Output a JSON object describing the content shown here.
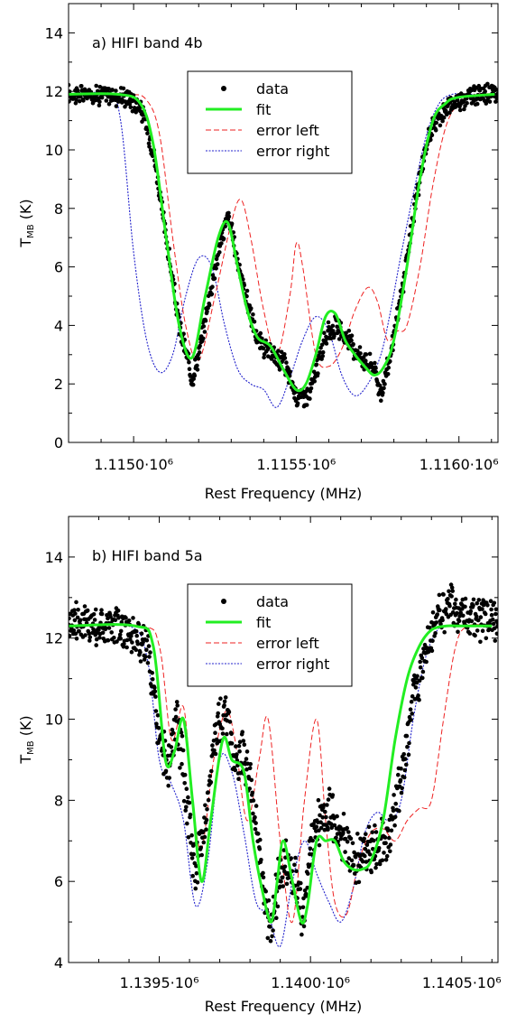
{
  "chart_data": [
    {
      "type": "line",
      "panel_label": "a) HIFI band 4b",
      "xlabel": "Rest Frequency (MHz)",
      "ylabel": "T_MB (K)",
      "ylabel_main": "T",
      "ylabel_sub": "MB",
      "ylabel_unit": " (K)",
      "xlim": [
        1114800,
        1116120
      ],
      "ylim": [
        0,
        15
      ],
      "x_ticks": [
        1115000,
        1115500,
        1116000
      ],
      "x_tick_labels": [
        "1.1150·10⁶",
        "1.1155·10⁶",
        "1.1160·10⁶"
      ],
      "y_ticks": [
        0,
        2,
        4,
        6,
        8,
        10,
        12,
        14
      ],
      "y_tick_labels": [
        "0",
        "2",
        "4",
        "6",
        "8",
        "10",
        "12",
        "14"
      ],
      "legend_placement": "top-center",
      "legend": [
        "data",
        "fit",
        "error left",
        "error right"
      ],
      "series": [
        {
          "name": "data",
          "style": "points",
          "color": "#000000",
          "x": [
            1114800,
            1114900,
            1114980,
            1115020,
            1115060,
            1115100,
            1115140,
            1115180,
            1115200,
            1115230,
            1115260,
            1115290,
            1115320,
            1115350,
            1115380,
            1115420,
            1115460,
            1115500,
            1115540,
            1115560,
            1115590,
            1115620,
            1115650,
            1115680,
            1115710,
            1115740,
            1115760,
            1115790,
            1115830,
            1115870,
            1115910,
            1115950,
            1116000,
            1116050,
            1116110
          ],
          "y": [
            11.9,
            11.9,
            11.8,
            11.5,
            10.0,
            7.0,
            4.0,
            2.2,
            3.0,
            4.8,
            6.5,
            7.8,
            6.2,
            4.8,
            3.5,
            3.0,
            2.8,
            1.6,
            1.6,
            2.4,
            3.6,
            4.0,
            3.6,
            3.2,
            2.8,
            2.6,
            1.6,
            3.0,
            5.5,
            8.5,
            10.6,
            11.3,
            11.7,
            11.9,
            11.9
          ]
        },
        {
          "name": "fit",
          "style": "solid",
          "color": "#22ee22",
          "x": [
            1114800,
            1114950,
            1115020,
            1115060,
            1115100,
            1115140,
            1115180,
            1115220,
            1115260,
            1115290,
            1115320,
            1115350,
            1115380,
            1115420,
            1115460,
            1115500,
            1115530,
            1115560,
            1115590,
            1115620,
            1115650,
            1115680,
            1115710,
            1115740,
            1115770,
            1115800,
            1115840,
            1115880,
            1115920,
            1115960,
            1116000,
            1116110
          ],
          "y": [
            11.9,
            11.9,
            11.6,
            10.2,
            7.0,
            4.0,
            2.9,
            5.0,
            7.0,
            7.5,
            6.0,
            4.5,
            3.6,
            3.3,
            2.5,
            1.8,
            2.0,
            3.0,
            4.3,
            4.4,
            3.5,
            3.0,
            2.6,
            2.3,
            2.6,
            3.5,
            6.0,
            9.0,
            11.0,
            11.6,
            11.8,
            11.9
          ]
        },
        {
          "name": "error left",
          "style": "dashed",
          "color": "#ee2222",
          "x": [
            1114800,
            1114980,
            1115040,
            1115080,
            1115120,
            1115160,
            1115200,
            1115250,
            1115300,
            1115330,
            1115360,
            1115400,
            1115440,
            1115480,
            1115500,
            1115520,
            1115560,
            1115600,
            1115640,
            1115680,
            1115720,
            1115750,
            1115780,
            1115810,
            1115840,
            1115880,
            1115920,
            1115960,
            1116000,
            1116050,
            1116110
          ],
          "y": [
            11.9,
            11.9,
            11.7,
            10.5,
            7.0,
            4.0,
            2.8,
            5.0,
            7.5,
            8.3,
            7.0,
            4.5,
            3.0,
            5.0,
            6.8,
            6.0,
            3.0,
            2.6,
            3.2,
            4.5,
            5.3,
            4.8,
            3.5,
            3.8,
            4.0,
            6.0,
            8.8,
            10.8,
            11.6,
            11.9,
            11.9
          ]
        },
        {
          "name": "error right",
          "style": "dotted",
          "color": "#2222cc",
          "x": [
            1114800,
            1114920,
            1114960,
            1115000,
            1115040,
            1115080,
            1115120,
            1115160,
            1115200,
            1115240,
            1115280,
            1115320,
            1115360,
            1115400,
            1115440,
            1115480,
            1115520,
            1115560,
            1115600,
            1115640,
            1115680,
            1115720,
            1115760,
            1115790,
            1115820,
            1115860,
            1115900,
            1115940,
            1115980,
            1116020,
            1116110
          ],
          "y": [
            11.9,
            11.9,
            11.0,
            6.5,
            3.5,
            2.4,
            3.0,
            5.0,
            6.3,
            6.0,
            4.0,
            2.5,
            2.0,
            1.8,
            1.2,
            2.2,
            3.5,
            4.3,
            3.8,
            2.3,
            1.6,
            2.0,
            3.0,
            4.5,
            6.3,
            8.5,
            10.5,
            11.6,
            11.9,
            11.9,
            11.9
          ]
        }
      ]
    },
    {
      "type": "line",
      "panel_label": "b) HIFI band 5a",
      "xlabel": "Rest Frequency (MHz)",
      "ylabel": "T_MB (K)",
      "ylabel_main": "T",
      "ylabel_sub": "MB",
      "ylabel_unit": " (K)",
      "xlim": [
        1139200,
        1140620
      ],
      "ylim": [
        4,
        15
      ],
      "x_ticks": [
        1139500,
        1140000,
        1140500
      ],
      "x_tick_labels": [
        "1.1395·10⁶",
        "1.1400·10⁶",
        "1.1405·10⁶"
      ],
      "y_ticks": [
        4,
        6,
        8,
        10,
        12,
        14
      ],
      "y_tick_labels": [
        "4",
        "6",
        "8",
        "10",
        "12",
        "14"
      ],
      "legend_placement": "top-center",
      "legend": [
        "data",
        "fit",
        "error left",
        "error right"
      ],
      "series": [
        {
          "name": "data",
          "style": "points",
          "color": "#000000",
          "x": [
            1139200,
            1139300,
            1139400,
            1139460,
            1139500,
            1139530,
            1139560,
            1139590,
            1139620,
            1139650,
            1139690,
            1139720,
            1139750,
            1139780,
            1139810,
            1139840,
            1139870,
            1139890,
            1139920,
            1139950,
            1139980,
            1140000,
            1140030,
            1140060,
            1140090,
            1140120,
            1140150,
            1140180,
            1140220,
            1140260,
            1140300,
            1140340,
            1140380,
            1140420,
            1140470,
            1140520,
            1140600
          ],
          "y": [
            12.5,
            12.3,
            12.2,
            11.8,
            9.5,
            8.8,
            10.0,
            8.0,
            6.2,
            7.5,
            9.8,
            10.2,
            9.0,
            9.2,
            8.0,
            6.0,
            4.8,
            5.8,
            6.5,
            6.0,
            5.0,
            6.8,
            7.5,
            7.8,
            7.2,
            7.0,
            6.5,
            6.8,
            6.8,
            7.2,
            8.5,
            10.5,
            11.8,
            12.5,
            12.8,
            12.5,
            12.5
          ]
        },
        {
          "name": "fit",
          "style": "solid",
          "color": "#22ee22",
          "x": [
            1139200,
            1139420,
            1139480,
            1139520,
            1139550,
            1139580,
            1139610,
            1139640,
            1139670,
            1139710,
            1139740,
            1139780,
            1139810,
            1139840,
            1139870,
            1139890,
            1139910,
            1139940,
            1139970,
            1139990,
            1140020,
            1140050,
            1140080,
            1140110,
            1140140,
            1140170,
            1140200,
            1140240,
            1140280,
            1140320,
            1140360,
            1140400,
            1140450,
            1140500,
            1140600
          ],
          "y": [
            12.3,
            12.3,
            11.8,
            9.0,
            9.2,
            10.0,
            8.0,
            6.0,
            7.5,
            9.5,
            9.0,
            8.7,
            7.0,
            5.8,
            5.0,
            6.0,
            7.0,
            6.0,
            5.0,
            5.4,
            7.0,
            7.0,
            7.0,
            6.5,
            6.3,
            6.3,
            6.5,
            7.5,
            9.5,
            11.0,
            11.8,
            12.2,
            12.3,
            12.3,
            12.3
          ]
        },
        {
          "name": "error left",
          "style": "dashed",
          "color": "#ee2222",
          "x": [
            1139200,
            1139440,
            1139500,
            1139540,
            1139580,
            1139610,
            1139640,
            1139680,
            1139720,
            1139750,
            1139790,
            1139830,
            1139860,
            1139900,
            1139940,
            1139980,
            1140020,
            1140050,
            1140080,
            1140120,
            1140160,
            1140200,
            1140240,
            1140280,
            1140320,
            1140360,
            1140400,
            1140440,
            1140480,
            1140520,
            1140600
          ],
          "y": [
            12.3,
            12.3,
            11.8,
            9.5,
            10.3,
            8.0,
            6.8,
            9.0,
            10.2,
            9.5,
            7.5,
            9.0,
            10.0,
            7.0,
            5.0,
            8.0,
            10.0,
            7.5,
            5.5,
            5.2,
            6.5,
            7.2,
            7.3,
            7.0,
            7.5,
            7.8,
            8.0,
            10.0,
            11.8,
            12.3,
            12.3
          ]
        },
        {
          "name": "error right",
          "style": "dotted",
          "color": "#2222cc",
          "x": [
            1139200,
            1139400,
            1139460,
            1139500,
            1139540,
            1139580,
            1139620,
            1139660,
            1139700,
            1139740,
            1139780,
            1139820,
            1139860,
            1139900,
            1139940,
            1139980,
            1140020,
            1140060,
            1140100,
            1140140,
            1140180,
            1140220,
            1140260,
            1140300,
            1140340,
            1140380,
            1140420,
            1140460,
            1140600
          ],
          "y": [
            12.3,
            12.3,
            11.5,
            9.0,
            8.4,
            7.5,
            5.4,
            6.5,
            9.0,
            8.7,
            7.2,
            5.5,
            5.2,
            4.4,
            6.0,
            7.0,
            6.2,
            5.5,
            5.0,
            5.8,
            7.2,
            7.7,
            7.5,
            8.0,
            10.0,
            11.5,
            12.2,
            12.3,
            12.3
          ]
        }
      ]
    }
  ]
}
